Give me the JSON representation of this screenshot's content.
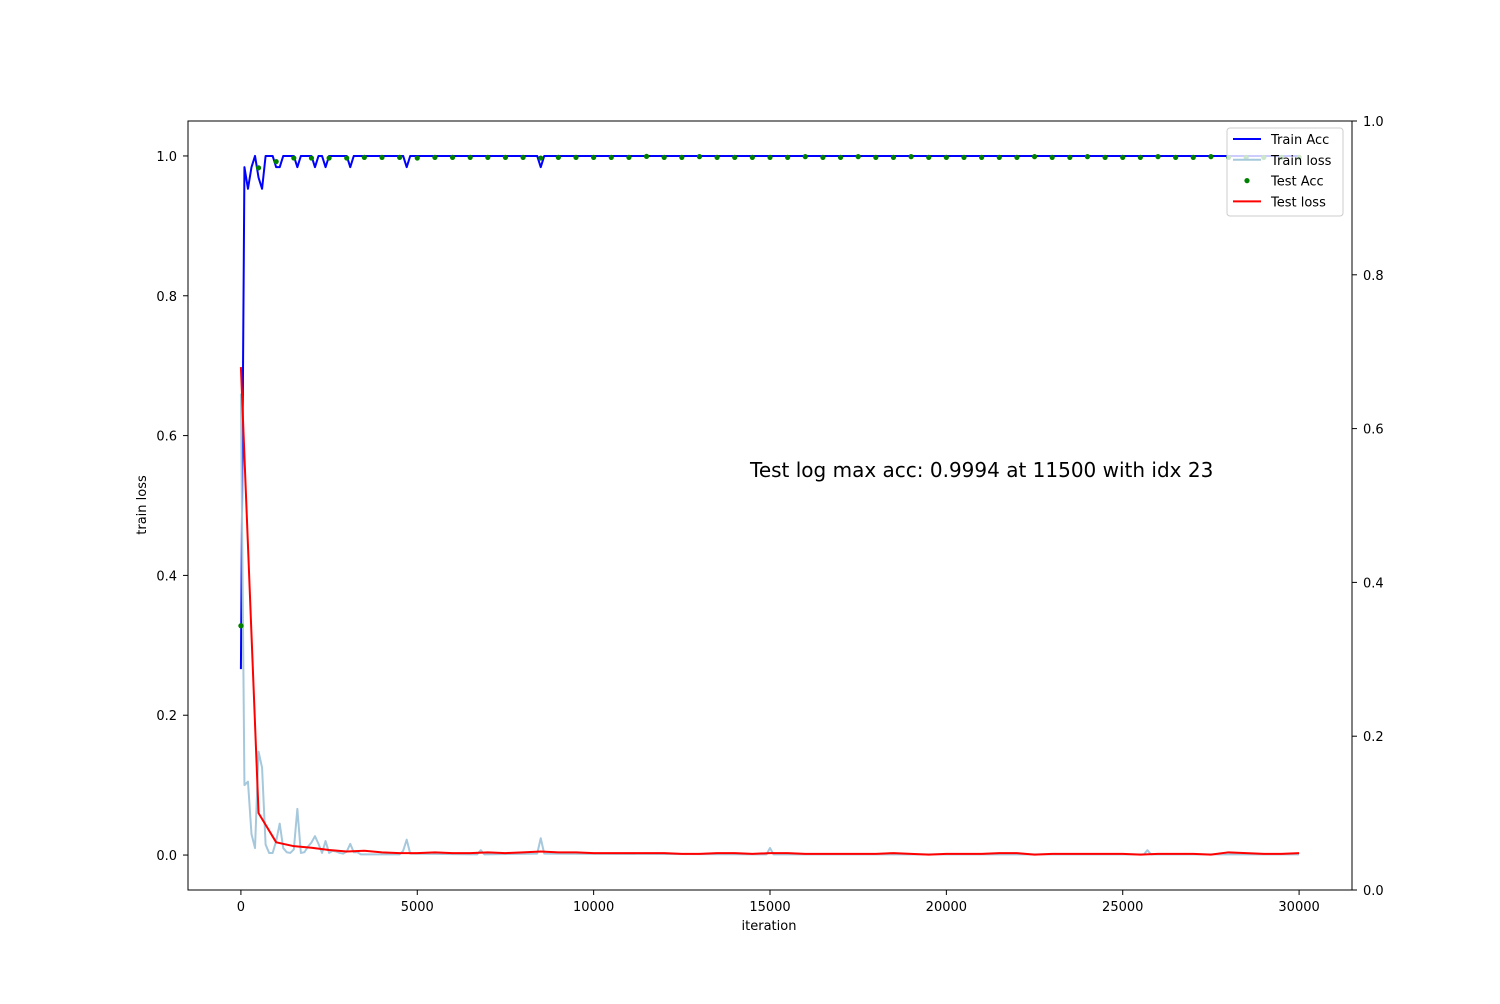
{
  "chart_data": {
    "type": "line",
    "title": "",
    "xlabel": "iteration",
    "ylabel": "train loss",
    "xlim": [
      -1500,
      31500
    ],
    "ylim": [
      -0.05,
      1.05
    ],
    "y2lim": [
      0.0,
      1.0
    ],
    "x_ticks": [
      0,
      5000,
      10000,
      15000,
      20000,
      25000,
      30000
    ],
    "x_tick_labels": [
      "0",
      "5000",
      "10000",
      "15000",
      "20000",
      "25000",
      "30000"
    ],
    "y_ticks": [
      0.0,
      0.2,
      0.4,
      0.6,
      0.8,
      1.0
    ],
    "y_tick_labels": [
      "0.0",
      "0.2",
      "0.4",
      "0.6",
      "0.8",
      "1.0"
    ],
    "y2_ticks": [
      0.0,
      0.2,
      0.4,
      0.6,
      0.8,
      1.0
    ],
    "y2_tick_labels": [
      "0.0",
      "0.2",
      "0.4",
      "0.6",
      "0.8",
      "1.0"
    ],
    "grid": false,
    "legend_position": "top-right",
    "annotation": "Test log max acc: 0.9994 at 11500 with idx 23",
    "series": [
      {
        "name": "Train Acc",
        "kind": "line",
        "axis": "left",
        "color": "#0000ff",
        "x": [
          0,
          100,
          200,
          300,
          400,
          500,
          600,
          700,
          800,
          900,
          1000,
          1100,
          1200,
          1300,
          1400,
          1500,
          1600,
          1700,
          1800,
          1900,
          2000,
          2100,
          2200,
          2300,
          2400,
          2500,
          2600,
          2700,
          2800,
          2900,
          3000,
          3100,
          3200,
          3300,
          3400,
          3500,
          4500,
          4600,
          4700,
          4800,
          8400,
          8500,
          8600,
          30000
        ],
        "y": [
          0.266,
          0.984,
          0.953,
          0.984,
          1.0,
          0.969,
          0.953,
          1.0,
          1.0,
          1.0,
          0.984,
          0.984,
          1.0,
          1.0,
          1.0,
          1.0,
          0.984,
          1.0,
          1.0,
          1.0,
          1.0,
          0.984,
          1.0,
          1.0,
          0.984,
          1.0,
          1.0,
          1.0,
          1.0,
          1.0,
          1.0,
          0.984,
          1.0,
          1.0,
          1.0,
          1.0,
          1.0,
          1.0,
          0.984,
          1.0,
          1.0,
          0.984,
          1.0,
          1.0
        ]
      },
      {
        "name": "Train loss",
        "kind": "line",
        "axis": "left",
        "color": "#a6c8dc",
        "x": [
          0,
          100,
          200,
          300,
          400,
          500,
          600,
          700,
          800,
          900,
          1000,
          1100,
          1200,
          1300,
          1400,
          1500,
          1600,
          1700,
          1800,
          1900,
          2000,
          2100,
          2200,
          2300,
          2400,
          2500,
          2600,
          2700,
          2800,
          2900,
          3000,
          3100,
          3200,
          3300,
          3400,
          3500,
          4500,
          4600,
          4700,
          4800,
          6700,
          6800,
          6900,
          8400,
          8500,
          8600,
          14900,
          15000,
          15100,
          25600,
          25700,
          25800,
          30000
        ],
        "y": [
          0.66,
          0.1,
          0.105,
          0.03,
          0.01,
          0.148,
          0.125,
          0.015,
          0.003,
          0.003,
          0.02,
          0.045,
          0.01,
          0.004,
          0.003,
          0.008,
          0.066,
          0.003,
          0.004,
          0.012,
          0.018,
          0.027,
          0.016,
          0.003,
          0.02,
          0.003,
          0.006,
          0.005,
          0.003,
          0.002,
          0.005,
          0.016,
          0.004,
          0.004,
          0.001,
          0.001,
          0.001,
          0.006,
          0.022,
          0.002,
          0.001,
          0.007,
          0.001,
          0.002,
          0.024,
          0.002,
          0.001,
          0.01,
          0.001,
          0.001,
          0.007,
          0.001,
          0.001
        ]
      },
      {
        "name": "Test Acc",
        "kind": "scatter",
        "axis": "left",
        "color": "#008000",
        "x": [
          0,
          500,
          1000,
          1500,
          2000,
          2500,
          3000,
          3500,
          4000,
          4500,
          5000,
          5500,
          6000,
          6500,
          7000,
          7500,
          8000,
          8500,
          9000,
          9500,
          10000,
          10500,
          11000,
          11500,
          12000,
          12500,
          13000,
          13500,
          14000,
          14500,
          15000,
          15500,
          16000,
          16500,
          17000,
          17500,
          18000,
          18500,
          19000,
          19500,
          20000,
          20500,
          21000,
          21500,
          22000,
          22500,
          23000,
          23500,
          24000,
          24500,
          25000,
          25500,
          26000,
          26500,
          27000,
          27500,
          28000,
          28500,
          29000,
          29500,
          30000
        ],
        "y": [
          0.328,
          0.983,
          0.992,
          0.997,
          0.997,
          0.997,
          0.997,
          0.998,
          0.998,
          0.998,
          0.997,
          0.998,
          0.998,
          0.998,
          0.998,
          0.998,
          0.998,
          0.997,
          0.998,
          0.998,
          0.998,
          0.998,
          0.998,
          0.9994,
          0.998,
          0.998,
          0.999,
          0.998,
          0.998,
          0.998,
          0.998,
          0.998,
          0.999,
          0.998,
          0.998,
          0.999,
          0.998,
          0.998,
          0.999,
          0.998,
          0.998,
          0.998,
          0.998,
          0.998,
          0.998,
          0.999,
          0.998,
          0.998,
          0.999,
          0.998,
          0.998,
          0.998,
          0.999,
          0.998,
          0.998,
          0.999,
          0.998,
          0.998,
          0.998,
          0.998,
          0.998
        ]
      },
      {
        "name": "Test loss",
        "kind": "line",
        "axis": "right",
        "color": "#ff0000",
        "x": [
          0,
          500,
          1000,
          1500,
          2000,
          2500,
          3000,
          3500,
          4000,
          4500,
          5000,
          5500,
          6000,
          6500,
          7000,
          7500,
          8000,
          8500,
          9000,
          9500,
          10000,
          10500,
          11000,
          11500,
          12000,
          12500,
          13000,
          13500,
          14000,
          14500,
          15000,
          15500,
          16000,
          16500,
          17000,
          17500,
          18000,
          18500,
          19000,
          19500,
          20000,
          20500,
          21000,
          21500,
          22000,
          22500,
          23000,
          23500,
          24000,
          24500,
          25000,
          25500,
          26000,
          26500,
          27000,
          27500,
          28000,
          28500,
          29000,
          29500,
          30000
        ],
        "y": [
          0.68,
          0.1,
          0.062,
          0.057,
          0.055,
          0.052,
          0.05,
          0.051,
          0.049,
          0.048,
          0.048,
          0.049,
          0.048,
          0.048,
          0.049,
          0.048,
          0.049,
          0.05,
          0.049,
          0.049,
          0.048,
          0.048,
          0.048,
          0.048,
          0.048,
          0.047,
          0.047,
          0.048,
          0.048,
          0.047,
          0.048,
          0.048,
          0.047,
          0.047,
          0.047,
          0.047,
          0.047,
          0.048,
          0.047,
          0.046,
          0.047,
          0.047,
          0.047,
          0.048,
          0.048,
          0.046,
          0.047,
          0.047,
          0.047,
          0.047,
          0.047,
          0.046,
          0.047,
          0.047,
          0.047,
          0.046,
          0.049,
          0.048,
          0.047,
          0.047,
          0.048
        ]
      }
    ]
  }
}
